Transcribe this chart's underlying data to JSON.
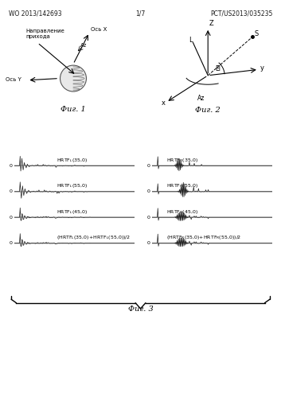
{
  "page_width": 3.53,
  "page_height": 4.99,
  "bg_color": "#ffffff",
  "header_left": "WO 2013/142693",
  "header_center": "1/7",
  "header_right": "PCT/US2013/035235",
  "fig1_label": "Фиг. 1",
  "fig2_label": "Фиг. 2",
  "fig3_label": "Фиг. 3",
  "fig1_text_axis_x": "Ось X",
  "fig1_text_axis_y": "Ось Y",
  "fig1_text_az": "Az",
  "fig1_text_direction": "Направление\nприхода",
  "fig2_text_z": "Z",
  "fig2_text_y": "y",
  "fig2_text_x": "x",
  "fig2_text_az": "Az",
  "fig2_text_el": "El",
  "fig2_text_l": "L",
  "fig2_text_s": "S",
  "labels_left": [
    "HRTF$_L$(35,0)",
    "HRTF$_L$(55,0)",
    "HRTF$_L$(45,0)",
    "(HRTF$_L$(35,0)+HRTF$_L$(55,0))/2"
  ],
  "labels_right": [
    "HRTF$_R$(35,0)",
    "HRTF$_R$(55,0)",
    "HRTF$_R$(45,0)",
    "(HRTF$_R$(35,0)+HRTF$_R$(55,0))/2"
  ],
  "text_color": "#1a1a1a",
  "line_color": "#1a1a1a"
}
